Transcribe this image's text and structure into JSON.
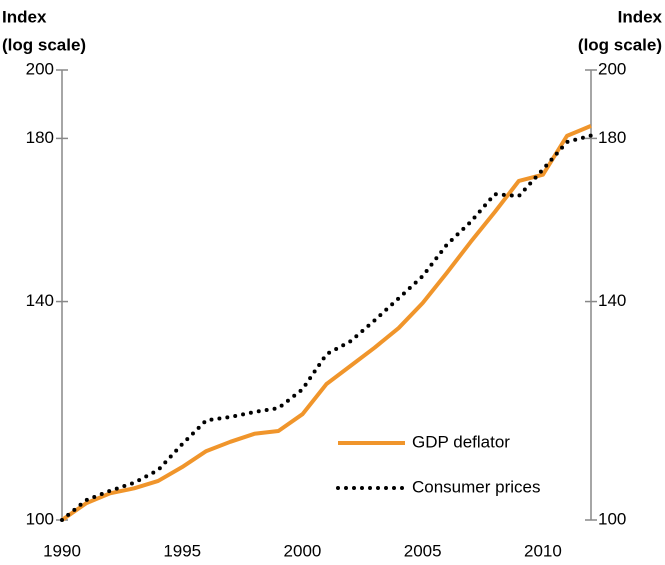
{
  "chart_data": {
    "type": "line",
    "y_label_lines": [
      "Index",
      "(log scale)"
    ],
    "y2_label_lines": [
      "Index",
      "(log scale)"
    ],
    "x": [
      1990,
      1991,
      1992,
      1993,
      1994,
      1995,
      1996,
      1997,
      1998,
      1999,
      2000,
      2001,
      2002,
      2003,
      2004,
      2005,
      2006,
      2007,
      2008,
      2009,
      2010,
      2011,
      2012
    ],
    "xlim": [
      1990,
      2012
    ],
    "xticks": [
      1990,
      1995,
      2000,
      2005,
      2010
    ],
    "ylim": [
      100,
      200
    ],
    "yticks": [
      100,
      140,
      180,
      200
    ],
    "y2lim": [
      100,
      200
    ],
    "y2ticks": [
      100,
      140,
      180,
      200
    ],
    "log_scale": true,
    "legend_position": "lower right",
    "series": [
      {
        "name": "GDP deflator",
        "color": "#f0952b",
        "style": "solid",
        "values": [
          100,
          102.6,
          104.2,
          105.0,
          106.2,
          108.5,
          111.2,
          112.8,
          114.2,
          114.7,
          117.7,
          123.3,
          126.8,
          130.4,
          134.4,
          139.7,
          146.3,
          153.5,
          160.7,
          168.6,
          170.2,
          180.7,
          183.5
        ]
      },
      {
        "name": "Consumer prices",
        "color": "#000000",
        "style": "dotted",
        "values": [
          100,
          103.1,
          104.6,
          105.9,
          108.0,
          112.4,
          116.6,
          117.2,
          118.1,
          118.8,
          122.3,
          129.1,
          131.7,
          136.0,
          140.7,
          145.6,
          152.8,
          158.3,
          165.2,
          164.7,
          171.6,
          179.0,
          180.8
        ]
      }
    ]
  }
}
